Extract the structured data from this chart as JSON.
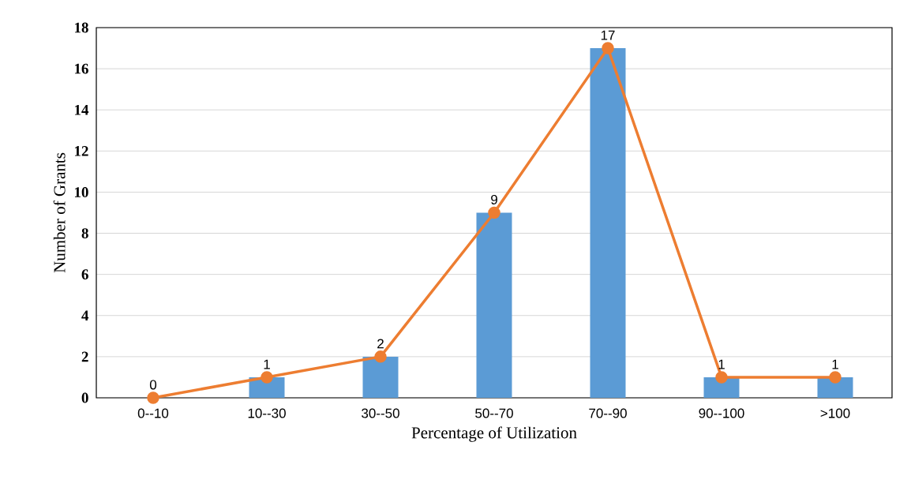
{
  "chart_data": {
    "type": "bar",
    "xlabel": "Percentage  of Utilization",
    "ylabel": "Number of Grants",
    "categories": [
      "0--10",
      "10--30",
      "30--50",
      "50--70",
      "70--90",
      "90--100",
      ">100"
    ],
    "series": [
      {
        "color": "#5b9bd5",
        "values": [
          0,
          1,
          2,
          9,
          17,
          1,
          1
        ]
      },
      {
        "type": "line",
        "color": "#ed7d31",
        "marker": "circle",
        "values": [
          0,
          1,
          2,
          9,
          17,
          1,
          1
        ],
        "value_labels": [
          "0",
          "1",
          "2",
          "9",
          "17",
          "1",
          "1"
        ]
      }
    ],
    "ylim": [
      0,
      18
    ],
    "yticks": [
      0,
      2,
      4,
      6,
      8,
      10,
      12,
      14,
      16,
      18
    ],
    "grid": "y"
  }
}
